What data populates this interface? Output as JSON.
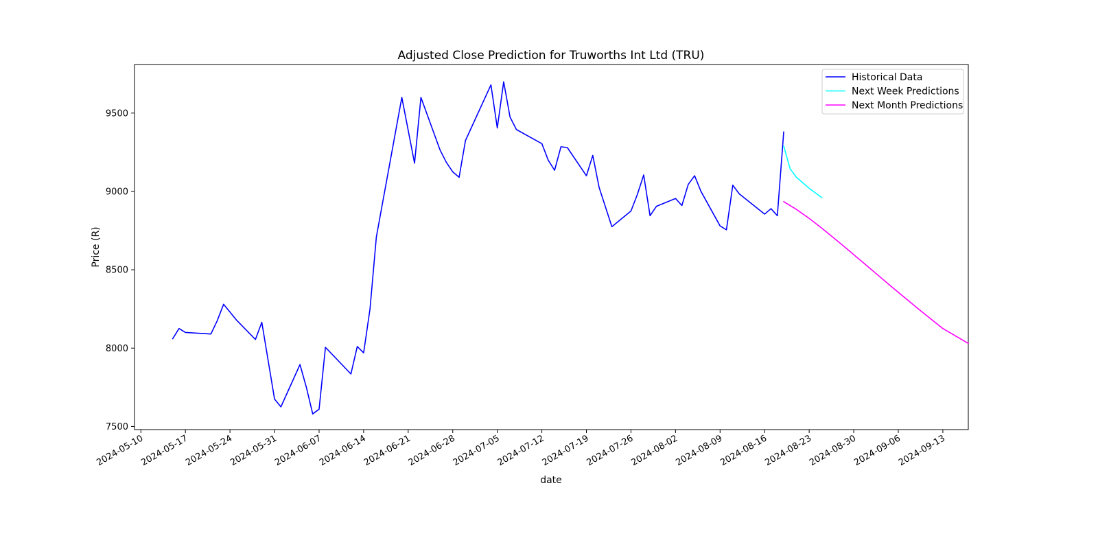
{
  "chart_data": {
    "type": "line",
    "title": "Adjusted Close Prediction for Truworths Int Ltd (TRU)",
    "xlabel": "date",
    "ylabel": "Price (R)",
    "x_type": "date",
    "xlim": [
      "2024-05-09",
      "2024-09-17"
    ],
    "ylim": [
      7480,
      9810
    ],
    "x_ticks": [
      "2024-05-10",
      "2024-05-17",
      "2024-05-24",
      "2024-05-31",
      "2024-06-07",
      "2024-06-14",
      "2024-06-21",
      "2024-06-28",
      "2024-07-05",
      "2024-07-12",
      "2024-07-19",
      "2024-07-26",
      "2024-08-02",
      "2024-08-09",
      "2024-08-16",
      "2024-08-23",
      "2024-08-30",
      "2024-09-06",
      "2024-09-13"
    ],
    "y_ticks": [
      7500,
      8000,
      8500,
      9000,
      9500
    ],
    "grid": false,
    "legend_position": "top-right",
    "series": [
      {
        "name": "Historical Data",
        "color": "#0000ff",
        "points": [
          [
            "2024-05-15",
            8060
          ],
          [
            "2024-05-16",
            8125
          ],
          [
            "2024-05-17",
            8100
          ],
          [
            "2024-05-21",
            8090
          ],
          [
            "2024-05-22",
            8175
          ],
          [
            "2024-05-23",
            8280
          ],
          [
            "2024-05-25",
            8180
          ],
          [
            "2024-05-28",
            8055
          ],
          [
            "2024-05-29",
            8165
          ],
          [
            "2024-05-31",
            7675
          ],
          [
            "2024-06-01",
            7625
          ],
          [
            "2024-06-04",
            7895
          ],
          [
            "2024-06-05",
            7750
          ],
          [
            "2024-06-06",
            7580
          ],
          [
            "2024-06-07",
            7610
          ],
          [
            "2024-06-08",
            8005
          ],
          [
            "2024-06-12",
            7835
          ],
          [
            "2024-06-13",
            8010
          ],
          [
            "2024-06-14",
            7970
          ],
          [
            "2024-06-15",
            8250
          ],
          [
            "2024-06-16",
            8710
          ],
          [
            "2024-06-20",
            9600
          ],
          [
            "2024-06-22",
            9180
          ],
          [
            "2024-06-23",
            9600
          ],
          [
            "2024-06-26",
            9265
          ],
          [
            "2024-06-27",
            9185
          ],
          [
            "2024-06-28",
            9125
          ],
          [
            "2024-06-29",
            9090
          ],
          [
            "2024-06-30",
            9325
          ],
          [
            "2024-07-04",
            9680
          ],
          [
            "2024-07-05",
            9405
          ],
          [
            "2024-07-06",
            9700
          ],
          [
            "2024-07-07",
            9475
          ],
          [
            "2024-07-08",
            9395
          ],
          [
            "2024-07-12",
            9305
          ],
          [
            "2024-07-13",
            9200
          ],
          [
            "2024-07-14",
            9135
          ],
          [
            "2024-07-15",
            9285
          ],
          [
            "2024-07-16",
            9280
          ],
          [
            "2024-07-19",
            9100
          ],
          [
            "2024-07-20",
            9230
          ],
          [
            "2024-07-21",
            9025
          ],
          [
            "2024-07-22",
            8900
          ],
          [
            "2024-07-23",
            8775
          ],
          [
            "2024-07-26",
            8875
          ],
          [
            "2024-07-27",
            8980
          ],
          [
            "2024-07-28",
            9105
          ],
          [
            "2024-07-29",
            8845
          ],
          [
            "2024-07-30",
            8905
          ],
          [
            "2024-08-02",
            8955
          ],
          [
            "2024-08-03",
            8910
          ],
          [
            "2024-08-04",
            9045
          ],
          [
            "2024-08-05",
            9100
          ],
          [
            "2024-08-06",
            9000
          ],
          [
            "2024-08-09",
            8780
          ],
          [
            "2024-08-10",
            8755
          ],
          [
            "2024-08-11",
            9040
          ],
          [
            "2024-08-12",
            8985
          ],
          [
            "2024-08-16",
            8855
          ],
          [
            "2024-08-17",
            8890
          ],
          [
            "2024-08-18",
            8845
          ],
          [
            "2024-08-19",
            9380
          ]
        ]
      },
      {
        "name": "Next Week Predictions",
        "color": "#00ffff",
        "points": [
          [
            "2024-08-19",
            9290
          ],
          [
            "2024-08-20",
            9145
          ],
          [
            "2024-08-21",
            9090
          ],
          [
            "2024-08-22",
            9055
          ],
          [
            "2024-08-23",
            9020
          ],
          [
            "2024-08-24",
            8990
          ],
          [
            "2024-08-25",
            8960
          ]
        ]
      },
      {
        "name": "Next Month Predictions",
        "color": "#ff00ff",
        "points": [
          [
            "2024-08-19",
            8935
          ],
          [
            "2024-08-21",
            8885
          ],
          [
            "2024-08-23",
            8828
          ],
          [
            "2024-08-25",
            8765
          ],
          [
            "2024-08-28",
            8665
          ],
          [
            "2024-09-01",
            8528
          ],
          [
            "2024-09-05",
            8390
          ],
          [
            "2024-09-09",
            8255
          ],
          [
            "2024-09-13",
            8125
          ],
          [
            "2024-09-17",
            8030
          ]
        ]
      }
    ]
  }
}
